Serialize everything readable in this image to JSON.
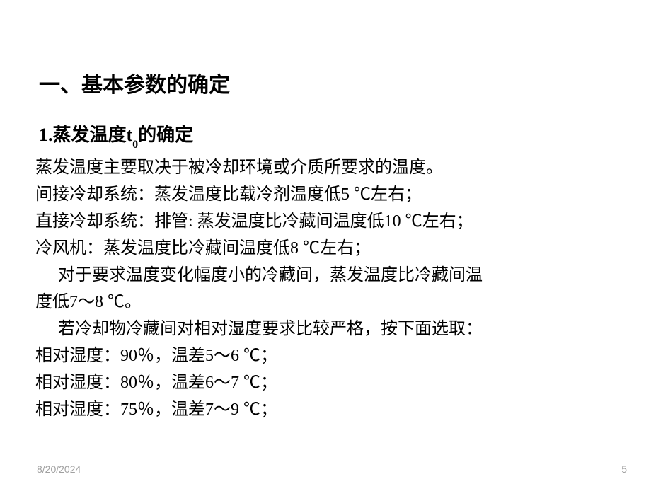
{
  "heading": {
    "main": "一、基本参数的确定",
    "sub_prefix": "1.蒸发温度t",
    "sub_subscript": "0",
    "sub_suffix": "的确定"
  },
  "body": {
    "line1": "蒸发温度主要取决于被冷却环境或介质所要求的温度。",
    "line2": "间接冷却系统：蒸发温度比载冷剂温度低5 ℃左右；",
    "line3": "直接冷却系统：排管: 蒸发温度比冷藏间温度低10 ℃左右；",
    "line4": "冷风机：蒸发温度比冷藏间温度低8 ℃左右；",
    "line5a": "对于要求温度变化幅度小的冷藏间，蒸发温度比冷藏间温",
    "line5b": "度低7～8 ℃。",
    "line6": "若冷却物冷藏间对相对湿度要求比较严格，按下面选取：",
    "rh1": "相对湿度：90％，温差5～6 ℃；",
    "rh2": "相对湿度：80％，温差6～7 ℃；",
    "rh3": "相对湿度：75％，温差7～9 ℃；"
  },
  "footer": {
    "date": "8/20/2024",
    "page": "5"
  },
  "style": {
    "background_color": "#ffffff",
    "text_color": "#000000",
    "footer_color": "#a0a0a0",
    "main_heading_fontsize": 30,
    "sub_heading_fontsize": 26,
    "body_fontsize": 24,
    "body_line_height": 38,
    "footer_fontsize": 14,
    "font_family": "SimSun"
  }
}
